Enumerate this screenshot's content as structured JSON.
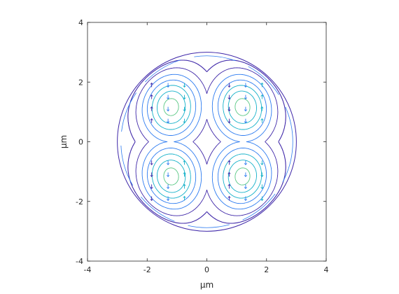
{
  "chart_data": {
    "type": "contour",
    "title": "",
    "xlabel": "μm",
    "ylabel": "μm",
    "xlim": [
      -4,
      4
    ],
    "ylim": [
      -4,
      4
    ],
    "xticks": [
      -4,
      -2,
      0,
      2,
      4
    ],
    "yticks": [
      -4,
      -2,
      0,
      2,
      4
    ],
    "xtick_labels": [
      "-4",
      "-2",
      "0",
      "2",
      "4"
    ],
    "ytick_labels": [
      "-4",
      "-2",
      "0",
      "2",
      "4"
    ],
    "grid": false,
    "legend": "none",
    "aspect": "equal",
    "description_values": {
      "boundary_radius": 3.0,
      "lobe_centers": [
        [
          -1.3,
          1.3
        ],
        [
          1.3,
          1.3
        ],
        [
          -1.3,
          -1.3
        ],
        [
          1.3,
          -1.3
        ]
      ],
      "contour_levels": [
        0.06,
        0.16,
        0.28,
        0.4,
        0.52,
        0.64,
        0.76,
        0.88,
        0.97
      ]
    },
    "colors": {
      "low": "#3e26a8",
      "mid_low": "#2c7bf0",
      "mid": "#13b0c8",
      "mid_high": "#58c783",
      "high": "#e8b92f",
      "axis": "#262626"
    }
  }
}
